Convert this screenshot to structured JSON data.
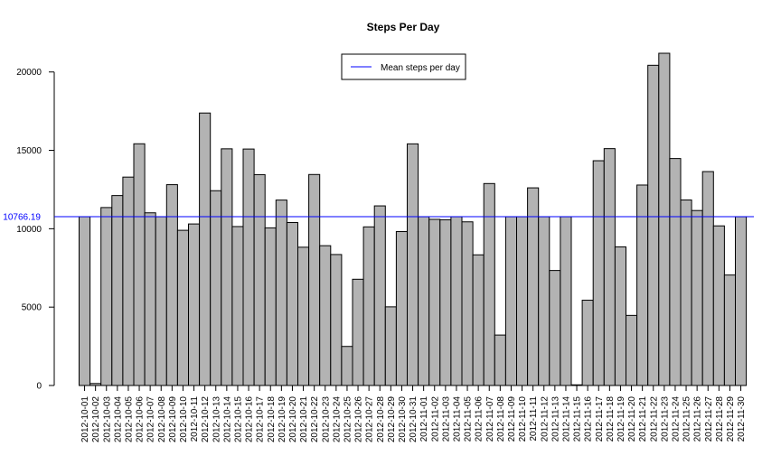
{
  "chart_data": {
    "type": "bar",
    "title": "Steps Per Day",
    "xlabel": "",
    "ylabel": "",
    "ylim": [
      0,
      21194
    ],
    "yticks": [
      0,
      5000,
      10000,
      15000,
      20000
    ],
    "bar_color": "#b3b3b3",
    "mean_line_color": "#0000ff",
    "mean_value": 10766.19,
    "mean_label": "10766.19",
    "legend": {
      "label": "Mean steps per day",
      "placement": "top-center"
    },
    "categories": [
      "2012-10-01",
      "2012-10-02",
      "2012-10-03",
      "2012-10-04",
      "2012-10-05",
      "2012-10-06",
      "2012-10-07",
      "2012-10-08",
      "2012-10-09",
      "2012-10-10",
      "2012-10-11",
      "2012-10-12",
      "2012-10-13",
      "2012-10-14",
      "2012-10-15",
      "2012-10-16",
      "2012-10-17",
      "2012-10-18",
      "2012-10-19",
      "2012-10-20",
      "2012-10-21",
      "2012-10-22",
      "2012-10-23",
      "2012-10-24",
      "2012-10-25",
      "2012-10-26",
      "2012-10-27",
      "2012-10-28",
      "2012-10-29",
      "2012-10-30",
      "2012-10-31",
      "2012-11-01",
      "2012-11-02",
      "2012-11-03",
      "2012-11-04",
      "2012-11-05",
      "2012-11-06",
      "2012-11-07",
      "2012-11-08",
      "2012-11-09",
      "2012-11-10",
      "2012-11-11",
      "2012-11-12",
      "2012-11-13",
      "2012-11-14",
      "2012-11-15",
      "2012-11-16",
      "2012-11-17",
      "2012-11-18",
      "2012-11-19",
      "2012-11-20",
      "2012-11-21",
      "2012-11-22",
      "2012-11-23",
      "2012-11-24",
      "2012-11-25",
      "2012-11-26",
      "2012-11-27",
      "2012-11-28",
      "2012-11-29",
      "2012-11-30"
    ],
    "values": [
      10766,
      126,
      11352,
      12116,
      13294,
      15420,
      11015,
      10766,
      12811,
      9900,
      10304,
      17382,
      12426,
      15098,
      10139,
      15084,
      13452,
      10056,
      11829,
      10395,
      8821,
      13460,
      8918,
      8355,
      2492,
      6778,
      10119,
      11458,
      5018,
      9819,
      15414,
      10766,
      10600,
      10571,
      10766,
      10439,
      8334,
      12883,
      3219,
      10766,
      10766,
      12608,
      10765,
      7336,
      10766,
      41,
      5441,
      14339,
      15110,
      8841,
      4472,
      12787,
      20427,
      21194,
      14478,
      11834,
      11162,
      13646,
      10183,
      7047,
      10766
    ]
  }
}
